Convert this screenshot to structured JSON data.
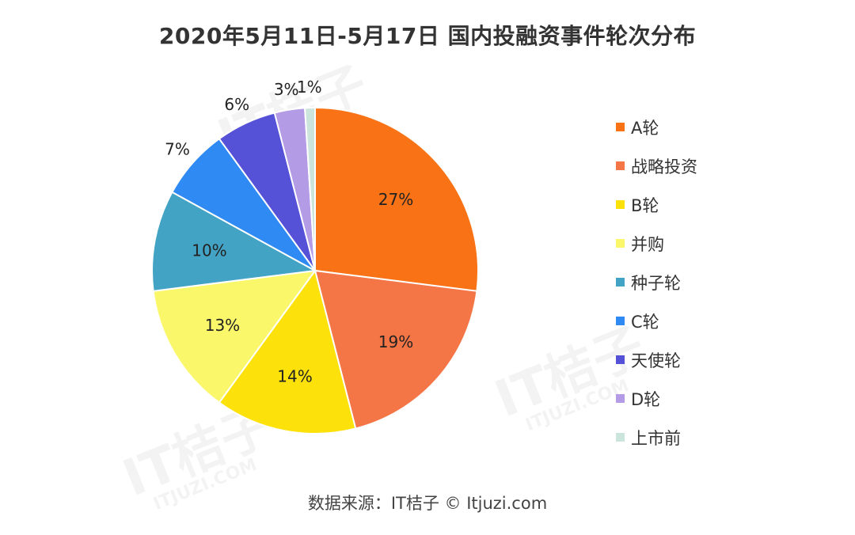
{
  "chart_data": {
    "type": "pie",
    "title": "2020年5月11日-5月17日 国内投融资事件轮次分布",
    "categories": [
      "A轮",
      "战略投资",
      "B轮",
      "并购",
      "种子轮",
      "C轮",
      "天使轮",
      "D轮",
      "上市前"
    ],
    "values": [
      27,
      19,
      14,
      13,
      10,
      7,
      6,
      3,
      1
    ],
    "labels": [
      "27%",
      "19%",
      "14%",
      "13%",
      "10%",
      "7%",
      "6%",
      "3%",
      "1%"
    ],
    "unit": "%",
    "colors": [
      "#f97316",
      "#f47546",
      "#fde10a",
      "#faf76a",
      "#43a3c4",
      "#2f8af3",
      "#5552d8",
      "#b39be6",
      "#cce5dc"
    ],
    "legend_position": "right",
    "source": "数据来源：IT桔子 © Itjuzi.com"
  },
  "watermark": {
    "text": "IT桔子",
    "subtext": "ITJUZI.COM"
  }
}
